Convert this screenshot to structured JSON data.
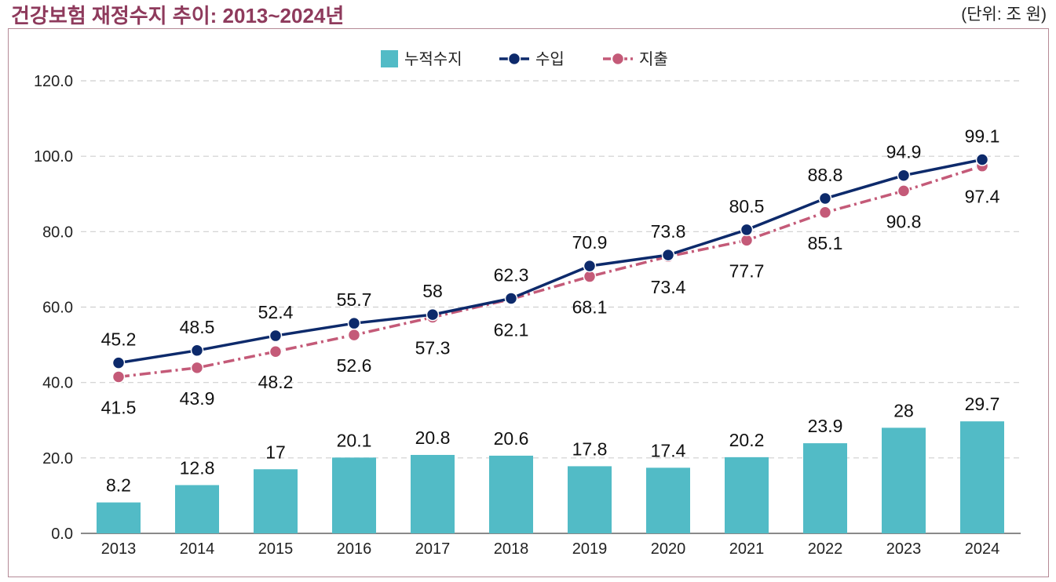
{
  "chart_data": {
    "type": "bar+line",
    "title": "건강보험 재정수지 추이: 2013~2024년",
    "unit_label": "(단위: 조 원)",
    "categories": [
      "2013",
      "2014",
      "2015",
      "2016",
      "2017",
      "2018",
      "2019",
      "2020",
      "2021",
      "2022",
      "2023",
      "2024"
    ],
    "series": [
      {
        "name": "누적수지",
        "type": "bar",
        "color": "#52BBC6",
        "values": [
          8.2,
          12.8,
          17.0,
          20.1,
          20.8,
          20.6,
          17.8,
          17.4,
          20.2,
          23.9,
          28.0,
          29.7
        ]
      },
      {
        "name": "수입",
        "type": "line",
        "style": "solid",
        "color": "#0D2A6B",
        "values": [
          45.2,
          48.5,
          52.4,
          55.7,
          58.0,
          62.3,
          70.9,
          73.8,
          80.5,
          88.8,
          94.9,
          99.1
        ]
      },
      {
        "name": "지출",
        "type": "line",
        "style": "dash-dot",
        "color": "#C45A78",
        "values": [
          41.5,
          43.9,
          48.2,
          52.6,
          57.3,
          62.1,
          68.1,
          73.4,
          77.7,
          85.1,
          90.8,
          97.4
        ]
      }
    ],
    "ylim": [
      0,
      120
    ],
    "yticks": [
      "0.0",
      "20.0",
      "40.0",
      "60.0",
      "80.0",
      "100.0",
      "120.0"
    ],
    "grid": true,
    "legend": "top-center"
  }
}
